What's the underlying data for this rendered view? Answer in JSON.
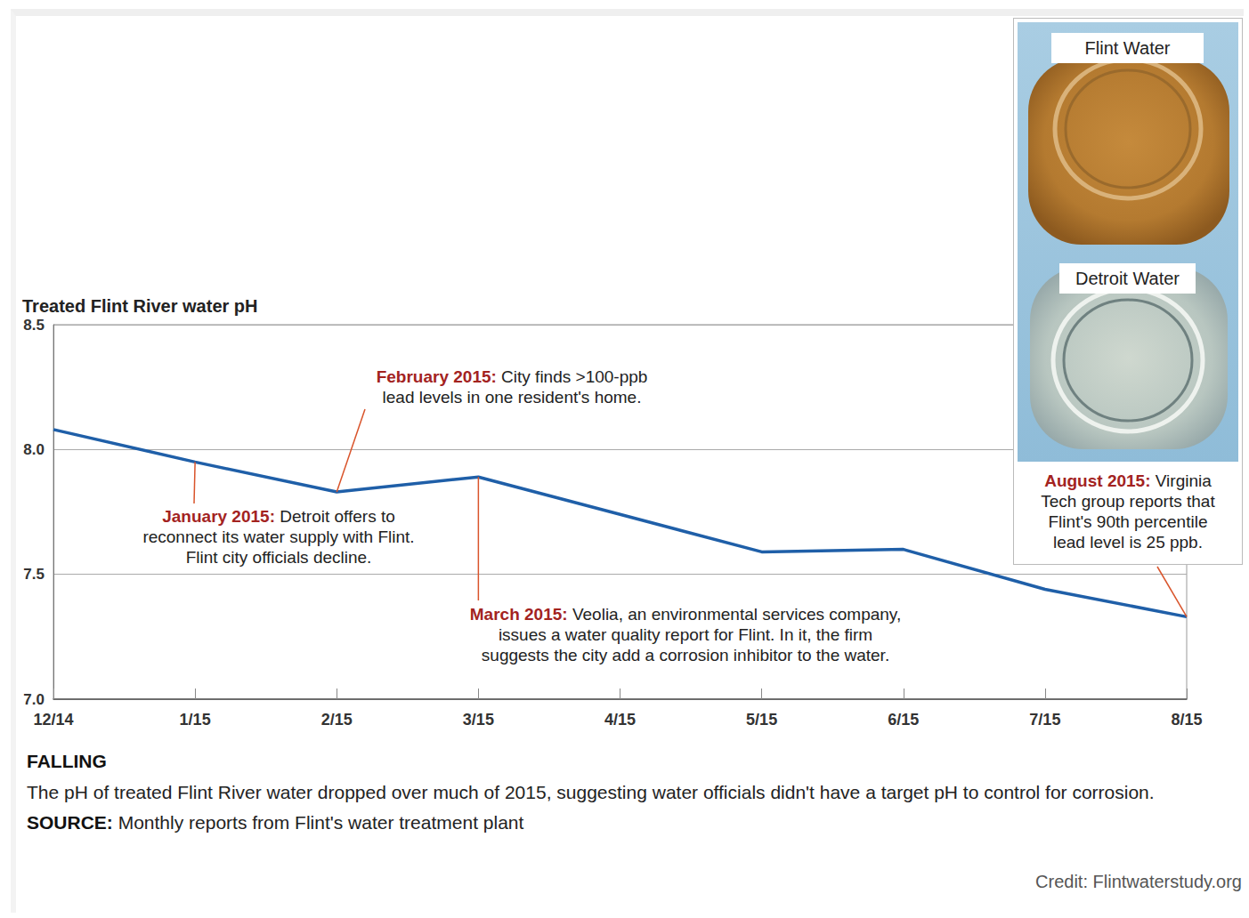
{
  "chart_data": {
    "type": "line",
    "title": "Treated Flint River water pH",
    "categories": [
      "12/14",
      "1/15",
      "2/15",
      "3/15",
      "4/15",
      "5/15",
      "6/15",
      "7/15",
      "8/15"
    ],
    "values": [
      8.08,
      7.95,
      7.83,
      7.89,
      7.74,
      7.59,
      7.6,
      7.44,
      7.33
    ],
    "color": "#1f5fa8",
    "ylim": [
      7,
      8.5
    ],
    "yticks": [
      {
        "value": 7,
        "label": "7.0"
      },
      {
        "value": 7.5,
        "label": "7.5"
      },
      {
        "value": 8,
        "label": "8.0"
      },
      {
        "value": 8.5,
        "label": "8.5"
      }
    ],
    "grid": true,
    "annotations": [
      {
        "x": "1/15",
        "label": "January 2015:",
        "lines": [
          "Detroit offers to",
          "reconnect its water supply with Flint.",
          "Flint city officials decline."
        ]
      },
      {
        "x": "2/15",
        "label": "February 2015:",
        "lines": [
          "City finds >100-ppb",
          "lead levels in one resident's home."
        ]
      },
      {
        "x": "3/15",
        "label": "March 2015:",
        "lines": [
          "Veolia, an environmental services company,",
          "issues a water quality report for Flint. In it, the firm",
          "suggests the city add a corrosion inhibitor to the water."
        ]
      },
      {
        "x": "8/15",
        "label": "August 2015:",
        "lines": [
          "Virginia",
          "Tech group reports that",
          "Flint's 90th percentile",
          "lead level is 25 ppb."
        ]
      }
    ],
    "inset_labels": [
      "Flint Water",
      "Detroit Water"
    ],
    "caption_title": "FALLING",
    "caption": "The pH of treated Flint River water dropped over much of 2015, suggesting water officials didn't have a target pH to control for corrosion.",
    "source_label": "SOURCE:",
    "source": "Monthly reports from Flint's water treatment plant",
    "credit": "Credit: Flintwaterstudy.org"
  }
}
